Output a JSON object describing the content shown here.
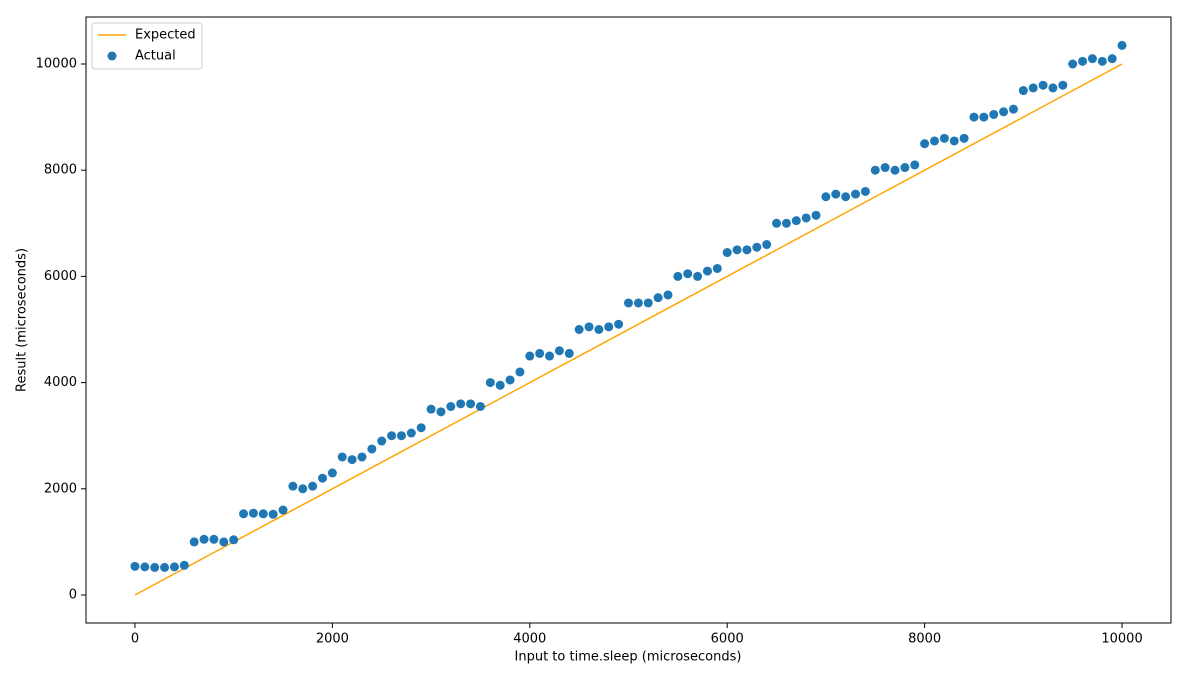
{
  "chart_data": {
    "type": "scatter",
    "xlabel": "Input to time.sleep (microseconds)",
    "ylabel": "Result (microseconds)",
    "xlim": [
      -496,
      10496
    ],
    "ylim": [
      -527,
      10885
    ],
    "xticks": [
      0,
      2000,
      4000,
      6000,
      8000,
      10000
    ],
    "yticks": [
      0,
      2000,
      4000,
      6000,
      8000,
      10000
    ],
    "grid": false,
    "legend": "upper left",
    "series": [
      {
        "name": "Expected",
        "type": "line",
        "color": "#ffa500",
        "x": [
          0,
          10000
        ],
        "values": [
          0,
          10000
        ]
      },
      {
        "name": "Actual",
        "type": "scatter",
        "color": "#1f77b4",
        "x": [
          0,
          100,
          200,
          300,
          400,
          500,
          600,
          700,
          800,
          900,
          1000,
          1100,
          1200,
          1300,
          1400,
          1500,
          1600,
          1700,
          1800,
          1900,
          2000,
          2100,
          2200,
          2300,
          2400,
          2500,
          2600,
          2700,
          2800,
          2900,
          3000,
          3100,
          3200,
          3300,
          3400,
          3500,
          3600,
          3700,
          3800,
          3900,
          4000,
          4100,
          4200,
          4300,
          4400,
          4500,
          4600,
          4700,
          4800,
          4900,
          5000,
          5100,
          5200,
          5300,
          5400,
          5500,
          5600,
          5700,
          5800,
          5900,
          6000,
          6100,
          6200,
          6300,
          6400,
          6500,
          6600,
          6700,
          6800,
          6900,
          7000,
          7100,
          7200,
          7300,
          7400,
          7500,
          7600,
          7700,
          7800,
          7900,
          8000,
          8100,
          8200,
          8300,
          8400,
          8500,
          8600,
          8700,
          8800,
          8900,
          9000,
          9100,
          9200,
          9300,
          9400,
          9500,
          9600,
          9700,
          9800,
          9900,
          10000
        ],
        "values": [
          540,
          530,
          520,
          520,
          530,
          560,
          1000,
          1050,
          1050,
          1000,
          1040,
          1530,
          1540,
          1530,
          1520,
          1600,
          2050,
          2000,
          2050,
          2200,
          2300,
          2600,
          2550,
          2600,
          2750,
          2900,
          3000,
          3000,
          3050,
          3150,
          3500,
          3450,
          3550,
          3600,
          3600,
          3550,
          4000,
          3950,
          4050,
          4200,
          4500,
          4550,
          4500,
          4600,
          4550,
          5000,
          5050,
          5000,
          5050,
          5100,
          5500,
          5500,
          5500,
          5600,
          5650,
          6000,
          6050,
          6000,
          6100,
          6150,
          6450,
          6500,
          6500,
          6550,
          6600,
          7000,
          7000,
          7050,
          7100,
          7150,
          7500,
          7550,
          7500,
          7550,
          7600,
          8000,
          8050,
          8000,
          8050,
          8100,
          8500,
          8550,
          8600,
          8550,
          8600,
          9000,
          9000,
          9050,
          9100,
          9150,
          9500,
          9550,
          9600,
          9550,
          9600,
          10000,
          10050,
          10100,
          10050,
          10100,
          10350
        ]
      }
    ]
  }
}
